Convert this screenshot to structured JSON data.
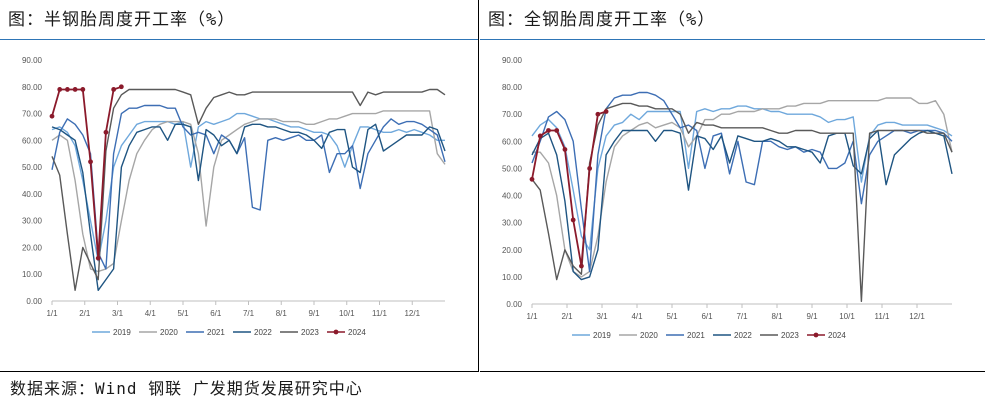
{
  "source": "数据来源：Wind 钢联 广发期货发展研究中心",
  "colors": {
    "2019": "#6fa8dc",
    "2020": "#a6a6a6",
    "2021": "#3d6eb4",
    "2022": "#1f5582",
    "2023": "#595959",
    "2024": "#8b1a2b"
  },
  "chart_data": [
    {
      "type": "line",
      "title": "图：半钢胎周度开工率（%）",
      "xlabel": "",
      "ylabel": "",
      "ylim": [
        0,
        90
      ],
      "y_ticks": [
        "0.00",
        "10.00",
        "20.00",
        "30.00",
        "40.00",
        "50.00",
        "60.00",
        "70.00",
        "80.00",
        "90.00"
      ],
      "x_ticks": [
        "1/1",
        "2/1",
        "3/1",
        "4/1",
        "5/1",
        "6/1",
        "7/1",
        "8/1",
        "9/1",
        "10/1",
        "11/1",
        "12/1"
      ],
      "x_unit": "week",
      "legend": "bottom",
      "series": [
        {
          "name": "2019",
          "color": "#6fa8dc",
          "values": [
            64,
            65,
            63,
            58,
            45,
            30,
            15,
            30,
            50,
            58,
            62,
            66,
            67,
            67,
            67,
            67,
            66,
            67,
            50,
            65,
            67,
            66,
            67,
            68,
            70,
            70,
            69,
            68,
            68,
            67,
            66,
            65,
            65,
            64,
            63,
            63,
            62,
            58,
            50,
            58,
            65,
            65,
            64,
            63,
            63,
            64,
            63,
            64,
            63,
            62,
            60,
            60
          ]
        },
        {
          "name": "2020",
          "color": "#a6a6a6",
          "values": [
            60,
            62,
            60,
            45,
            25,
            12,
            11,
            12,
            14,
            30,
            45,
            55,
            60,
            64,
            66,
            67,
            67,
            67,
            66,
            55,
            28,
            50,
            60,
            62,
            64,
            66,
            67,
            68,
            68,
            68,
            67,
            67,
            67,
            66,
            66,
            67,
            68,
            68,
            69,
            70,
            70,
            70,
            70,
            71,
            71,
            71,
            71,
            71,
            71,
            71,
            55,
            51
          ]
        },
        {
          "name": "2021",
          "color": "#3d6eb4",
          "values": [
            49,
            63,
            68,
            66,
            62,
            55,
            18,
            12,
            55,
            70,
            72,
            72,
            73,
            73,
            73,
            72,
            72,
            65,
            62,
            63,
            62,
            55,
            62,
            60,
            55,
            61,
            35,
            34,
            60,
            61,
            60,
            61,
            62,
            60,
            60,
            62,
            48,
            55,
            55,
            58,
            42,
            55,
            60,
            65,
            68,
            66,
            67,
            67,
            66,
            64,
            62,
            52
          ]
        },
        {
          "name": "2022",
          "color": "#1f5582",
          "values": [
            65,
            64,
            62,
            60,
            48,
            25,
            4,
            8,
            12,
            50,
            58,
            63,
            64,
            65,
            65,
            60,
            66,
            66,
            65,
            45,
            64,
            62,
            58,
            60,
            55,
            65,
            66,
            66,
            65,
            65,
            64,
            63,
            63,
            62,
            60,
            57,
            63,
            64,
            64,
            50,
            48,
            64,
            66,
            56,
            58,
            60,
            62,
            62,
            62,
            65,
            64,
            56
          ]
        },
        {
          "name": "2023",
          "color": "#595959",
          "values": [
            54,
            47,
            25,
            4,
            20,
            14,
            8,
            56,
            72,
            77,
            79,
            79,
            79,
            79,
            79,
            79,
            79,
            78,
            77,
            66,
            72,
            76,
            77,
            78,
            77,
            77,
            78,
            78,
            78,
            78,
            78,
            78,
            78,
            78,
            78,
            78,
            78,
            78,
            78,
            78,
            73,
            78,
            77,
            78,
            78,
            78,
            78,
            78,
            78,
            79,
            79,
            77
          ]
        },
        {
          "name": "2024",
          "color": "#8b1a2b",
          "values": [
            69,
            79,
            79,
            79,
            79,
            52,
            16,
            63,
            79,
            80
          ]
        }
      ]
    },
    {
      "type": "line",
      "title": "图：全钢胎周度开工率（%）",
      "xlabel": "",
      "ylabel": "",
      "ylim": [
        0,
        90
      ],
      "y_ticks": [
        "0.00",
        "10.00",
        "20.00",
        "30.00",
        "40.00",
        "50.00",
        "60.00",
        "70.00",
        "80.00",
        "90.00"
      ],
      "x_ticks": [
        "1/1",
        "2/1",
        "3/1",
        "4/1",
        "5/1",
        "6/1",
        "7/1",
        "8/1",
        "9/1",
        "10/1",
        "11/1",
        "12/1"
      ],
      "x_unit": "week",
      "legend": "bottom",
      "series": [
        {
          "name": "2019",
          "color": "#6fa8dc",
          "values": [
            62,
            66,
            68,
            65,
            58,
            42,
            25,
            20,
            50,
            62,
            66,
            67,
            70,
            68,
            71,
            71,
            71,
            71,
            71,
            50,
            71,
            72,
            71,
            72,
            72,
            73,
            73,
            72,
            72,
            71,
            71,
            70,
            70,
            70,
            70,
            69,
            67,
            68,
            68,
            69,
            45,
            62,
            66,
            67,
            67,
            66,
            66,
            66,
            66,
            65,
            64,
            62
          ]
        },
        {
          "name": "2020",
          "color": "#a6a6a6",
          "values": [
            56,
            56,
            52,
            40,
            20,
            12,
            10,
            12,
            25,
            45,
            58,
            62,
            64,
            66,
            67,
            65,
            66,
            67,
            65,
            58,
            62,
            68,
            68,
            70,
            70,
            71,
            71,
            71,
            72,
            72,
            72,
            73,
            73,
            74,
            74,
            74,
            75,
            75,
            75,
            75,
            75,
            75,
            75,
            76,
            76,
            76,
            76,
            74,
            74,
            75,
            70,
            56
          ]
        },
        {
          "name": "2021",
          "color": "#3d6eb4",
          "values": [
            52,
            60,
            69,
            71,
            68,
            60,
            35,
            12,
            55,
            72,
            76,
            77,
            77,
            78,
            78,
            77,
            75,
            70,
            65,
            66,
            64,
            50,
            62,
            63,
            48,
            60,
            45,
            44,
            60,
            60,
            58,
            57,
            58,
            56,
            57,
            56,
            50,
            50,
            52,
            60,
            37,
            55,
            60,
            62,
            64,
            64,
            63,
            64,
            64,
            64,
            63,
            60
          ]
        },
        {
          "name": "2022",
          "color": "#1f5582",
          "values": [
            55,
            61,
            63,
            55,
            38,
            12,
            9,
            10,
            20,
            55,
            60,
            64,
            64,
            64,
            64,
            60,
            64,
            64,
            63,
            42,
            62,
            61,
            57,
            62,
            52,
            62,
            61,
            60,
            60,
            61,
            60,
            58,
            58,
            57,
            56,
            52,
            62,
            63,
            63,
            51,
            48,
            61,
            64,
            44,
            55,
            58,
            61,
            63,
            64,
            63,
            62,
            48
          ]
        },
        {
          "name": "2023",
          "color": "#595959",
          "values": [
            46,
            42,
            26,
            9,
            20,
            14,
            11,
            52,
            66,
            72,
            73,
            74,
            74,
            73,
            73,
            72,
            72,
            72,
            70,
            63,
            67,
            66,
            66,
            65,
            65,
            65,
            65,
            65,
            65,
            64,
            63,
            63,
            64,
            64,
            64,
            63,
            63,
            63,
            63,
            63,
            1,
            63,
            64,
            64,
            64,
            64,
            64,
            64,
            63,
            63,
            63,
            56
          ]
        },
        {
          "name": "2024",
          "color": "#8b1a2b",
          "values": [
            46,
            62,
            64,
            64,
            57,
            31,
            14,
            50,
            70,
            71
          ]
        }
      ]
    }
  ]
}
